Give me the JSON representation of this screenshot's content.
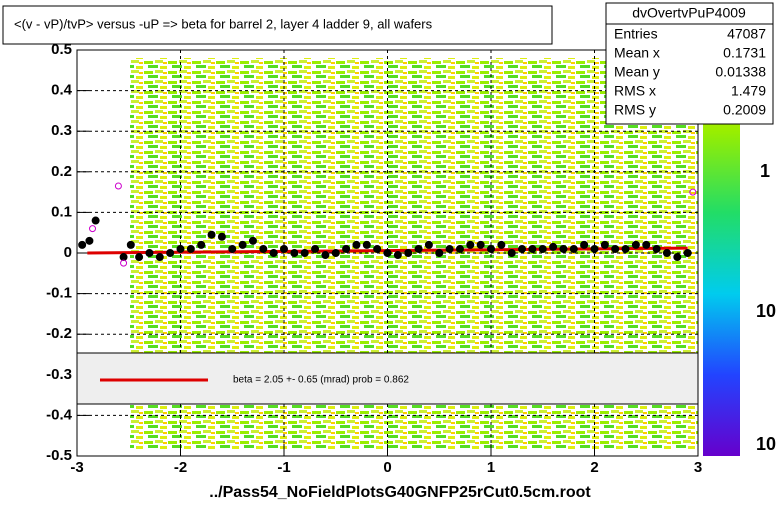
{
  "chart_data": {
    "type": "profile",
    "title": "<(v - vP)/tvP> versus  -uP => beta for barrel 2, layer 4 ladder 9, all wafers",
    "x_label": "../Pass54_NoFieldPlotsG40GNFP25rCut0.5cm.root",
    "xlim": [
      -3,
      3
    ],
    "xticks": [
      -3,
      -2,
      -1,
      0,
      1,
      2,
      3
    ],
    "ylim": [
      -0.5,
      0.5
    ],
    "yticks": [
      -0.5,
      -0.4,
      -0.3,
      -0.2,
      -0.1,
      0,
      0.1,
      0.2,
      0.3,
      0.4,
      0.5
    ],
    "grid": true,
    "series": [
      {
        "color": "#000000",
        "x": [
          -2.95,
          -2.88,
          -2.82,
          -2.55,
          -2.48,
          -2.4,
          -2.3,
          -2.2,
          -2.1,
          -2.0,
          -1.9,
          -1.8,
          -1.7,
          -1.6,
          -1.5,
          -1.4,
          -1.3,
          -1.2,
          -1.1,
          -1.0,
          -0.9,
          -0.8,
          -0.7,
          -0.6,
          -0.5,
          -0.4,
          -0.3,
          -0.2,
          -0.1,
          0,
          0.1,
          0.2,
          0.3,
          0.4,
          0.5,
          0.6,
          0.7,
          0.8,
          0.9,
          1.0,
          1.1,
          1.2,
          1.3,
          1.4,
          1.5,
          1.6,
          1.7,
          1.8,
          1.9,
          2.0,
          2.1,
          2.2,
          2.3,
          2.4,
          2.5,
          2.6,
          2.7,
          2.8,
          2.9
        ],
        "values": [
          0.02,
          0.03,
          0.08,
          -0.01,
          0.02,
          -0.01,
          0.0,
          -0.01,
          0.0,
          0.01,
          0.01,
          0.02,
          0.045,
          0.04,
          0.01,
          0.02,
          0.03,
          0.01,
          0.0,
          0.01,
          0.0,
          0.0,
          0.01,
          -0.005,
          0.0,
          0.01,
          0.02,
          0.02,
          0.01,
          0.0,
          -0.005,
          0.0,
          0.01,
          0.02,
          0.0,
          0.01,
          0.01,
          0.02,
          0.02,
          0.01,
          0.02,
          0.0,
          0.01,
          0.01,
          0.01,
          0.015,
          0.01,
          0.01,
          0.02,
          0.01,
          0.02,
          0.01,
          0.01,
          0.02,
          0.02,
          0.01,
          0.0,
          -0.01,
          0.0
        ]
      },
      {
        "color": "#cc00cc",
        "x": [
          -2.85,
          -2.6,
          -2.55,
          2.95
        ],
        "values": [
          0.06,
          0.165,
          -0.025,
          0.15
        ]
      }
    ],
    "fit": {
      "color": "#dd0000",
      "x": [
        -2.9,
        2.9
      ],
      "values": [
        0.0,
        0.012
      ],
      "label": "beta =    2.05 +-  0.65 (mrad) prob = 0.862"
    },
    "stats": {
      "name": "dvOvertvPuP4009",
      "rows": [
        [
          "Entries",
          "47087"
        ],
        [
          "Mean x",
          "0.1731"
        ],
        [
          "Mean y",
          "0.01338"
        ],
        [
          "RMS x",
          "1.479"
        ],
        [
          "RMS y",
          "0.2009"
        ]
      ]
    },
    "colorbar_labels": [
      "1",
      "10",
      "10"
    ]
  }
}
